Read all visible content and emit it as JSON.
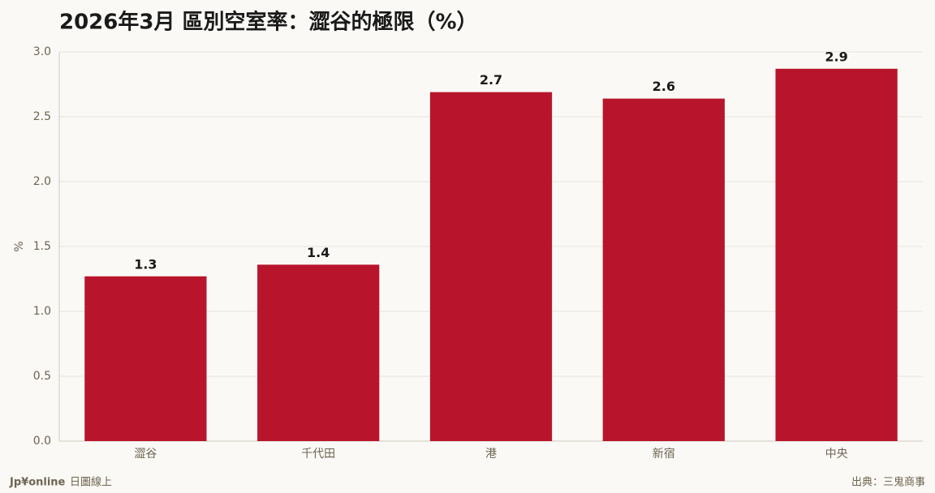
{
  "chart_data": {
    "type": "bar",
    "title": "2026年3月 區別空室率：澀谷的極限（%）",
    "y_label": "%",
    "categories": [
      "澀谷",
      "千代田",
      "港",
      "新宿",
      "中央"
    ],
    "values": [
      1.27,
      1.36,
      2.69,
      2.64,
      2.87
    ],
    "value_labels": [
      "1.3",
      "1.4",
      "2.7",
      "2.6",
      "2.9"
    ],
    "color": "#b8152c",
    "ylim": [
      0,
      3
    ],
    "yticks": [
      {
        "value": 0,
        "label": "0.0"
      },
      0.5,
      {
        "value": 1,
        "label": "1.0"
      },
      1.5,
      {
        "value": 2,
        "label": "2.0"
      },
      2.5,
      {
        "value": 3,
        "label": "3.0"
      }
    ],
    "grid": true
  },
  "footer": {
    "brand": "Jp¥online",
    "brand_sub": "日圖線上",
    "source": "出典：三鬼商事"
  }
}
